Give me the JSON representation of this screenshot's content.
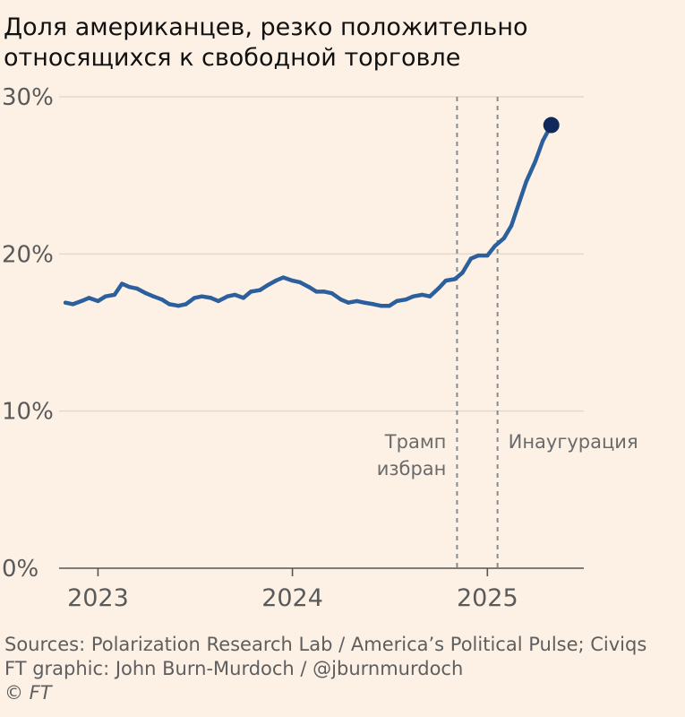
{
  "title": {
    "line1": "Доля американцев, резко положительно",
    "line2": "относящихся к свободной торговле"
  },
  "footer": {
    "sources": "Sources: Polarization Research Lab / America’s Political Pulse; Civiqs",
    "graphic": "FT graphic: John Burn-Murdoch / @jburnmurdoch",
    "copyright": "© FT"
  },
  "colors": {
    "background": "#fdf1e6",
    "line": "#2c5f9e",
    "endpoint": "#0f2a5a",
    "grid": "#e3d8cc",
    "axis": "#555555",
    "annotation_line": "#8a8a8a"
  },
  "chart_data": {
    "type": "line",
    "title": "Доля американцев, резко положительно относящихся к свободной торговле",
    "xlabel": "",
    "ylabel": "",
    "ylim": [
      0,
      30
    ],
    "xlim": [
      "2022-10-20",
      "2025-07-01"
    ],
    "y_ticks": [
      "0%",
      "10%",
      "20%",
      "30%"
    ],
    "y_tick_values": [
      0,
      10,
      20,
      30
    ],
    "x_ticks": [
      "2023",
      "2024",
      "2025"
    ],
    "x_tick_values": [
      "2023-01-01",
      "2024-01-01",
      "2025-01-01"
    ],
    "grid": true,
    "legend": "none",
    "series": [
      {
        "x": [
          "2022-11-01",
          "2022-11-15",
          "2022-12-01",
          "2022-12-15",
          "2023-01-01",
          "2023-01-15",
          "2023-02-01",
          "2023-02-15",
          "2023-03-01",
          "2023-03-15",
          "2023-04-01",
          "2023-04-15",
          "2023-05-01",
          "2023-05-15",
          "2023-06-01",
          "2023-06-15",
          "2023-07-01",
          "2023-07-15",
          "2023-08-01",
          "2023-08-15",
          "2023-09-01",
          "2023-09-15",
          "2023-10-01",
          "2023-10-15",
          "2023-11-01",
          "2023-11-15",
          "2023-12-01",
          "2023-12-15",
          "2024-01-01",
          "2024-01-15",
          "2024-02-01",
          "2024-02-15",
          "2024-03-01",
          "2024-03-15",
          "2024-04-01",
          "2024-04-15",
          "2024-05-01",
          "2024-05-15",
          "2024-06-01",
          "2024-06-15",
          "2024-07-01",
          "2024-07-15",
          "2024-08-01",
          "2024-08-15",
          "2024-09-01",
          "2024-09-15",
          "2024-10-01",
          "2024-10-15",
          "2024-11-01",
          "2024-11-15",
          "2024-12-01",
          "2024-12-15",
          "2025-01-01",
          "2025-01-15",
          "2025-02-01",
          "2025-02-15",
          "2025-03-01",
          "2025-03-15",
          "2025-04-01",
          "2025-04-15",
          "2025-05-01"
        ],
        "values": [
          16.9,
          16.8,
          17.0,
          17.2,
          17.0,
          17.3,
          17.4,
          18.1,
          17.9,
          17.8,
          17.5,
          17.3,
          17.1,
          16.8,
          16.7,
          16.8,
          17.2,
          17.3,
          17.2,
          17.0,
          17.3,
          17.4,
          17.2,
          17.6,
          17.7,
          18.0,
          18.3,
          18.5,
          18.3,
          18.2,
          17.9,
          17.6,
          17.6,
          17.5,
          17.1,
          16.9,
          17.0,
          16.9,
          16.8,
          16.7,
          16.7,
          17.0,
          17.1,
          17.3,
          17.4,
          17.3,
          17.8,
          18.3,
          18.4,
          18.8,
          19.7,
          19.9,
          19.9,
          20.5,
          21.0,
          21.8,
          23.2,
          24.6,
          25.9,
          27.2,
          28.2
        ]
      }
    ],
    "annotations": [
      {
        "x": "2024-11-05",
        "lines": [
          "Трамп",
          "избран"
        ],
        "align": "left"
      },
      {
        "x": "2025-01-20",
        "lines": [
          "Инаугурация"
        ],
        "align": "right"
      }
    ],
    "endpoint_marker": true
  }
}
